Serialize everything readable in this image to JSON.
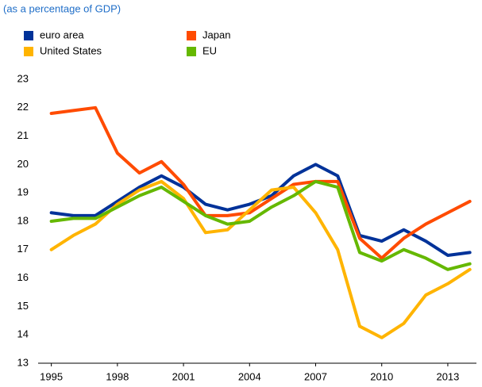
{
  "chart_data": {
    "type": "line",
    "subtitle": "(as a percentage of GDP)",
    "x": [
      1995,
      1996,
      1997,
      1998,
      1999,
      2000,
      2001,
      2002,
      2003,
      2004,
      2005,
      2006,
      2007,
      2008,
      2009,
      2010,
      2011,
      2012,
      2013,
      2014
    ],
    "series": [
      {
        "name": "euro area",
        "color": "#003299",
        "values": [
          18.3,
          18.2,
          18.2,
          18.7,
          19.2,
          19.6,
          19.2,
          18.6,
          18.4,
          18.6,
          18.9,
          19.6,
          20.0,
          19.6,
          17.5,
          17.3,
          17.7,
          17.3,
          16.8,
          16.9
        ]
      },
      {
        "name": "Japan",
        "color": "#ff4b00",
        "values": [
          21.8,
          21.9,
          22.0,
          20.4,
          19.7,
          20.1,
          19.3,
          18.2,
          18.2,
          18.3,
          18.8,
          19.3,
          19.4,
          19.4,
          17.4,
          16.7,
          17.4,
          17.9,
          18.3,
          18.7
        ]
      },
      {
        "name": "United States",
        "color": "#ffb400",
        "values": [
          17.0,
          17.5,
          17.9,
          18.6,
          19.1,
          19.4,
          18.8,
          17.6,
          17.7,
          18.4,
          19.1,
          19.2,
          18.3,
          17.0,
          14.3,
          13.9,
          14.4,
          15.4,
          15.8,
          16.3
        ]
      },
      {
        "name": "EU",
        "color": "#65b800",
        "values": [
          18.0,
          18.1,
          18.1,
          18.5,
          18.9,
          19.2,
          18.7,
          18.2,
          17.9,
          18.0,
          18.5,
          18.9,
          19.4,
          19.2,
          16.9,
          16.6,
          17.0,
          16.7,
          16.3,
          16.5
        ]
      }
    ],
    "xlim": [
      1994.4,
      2014.3
    ],
    "xticks": [
      1995,
      1998,
      2001,
      2004,
      2007,
      2010,
      2013
    ],
    "ylim": [
      13,
      23
    ],
    "yticks": [
      13,
      14,
      15,
      16,
      17,
      18,
      19,
      20,
      21,
      22,
      23
    ],
    "grid": false
  }
}
